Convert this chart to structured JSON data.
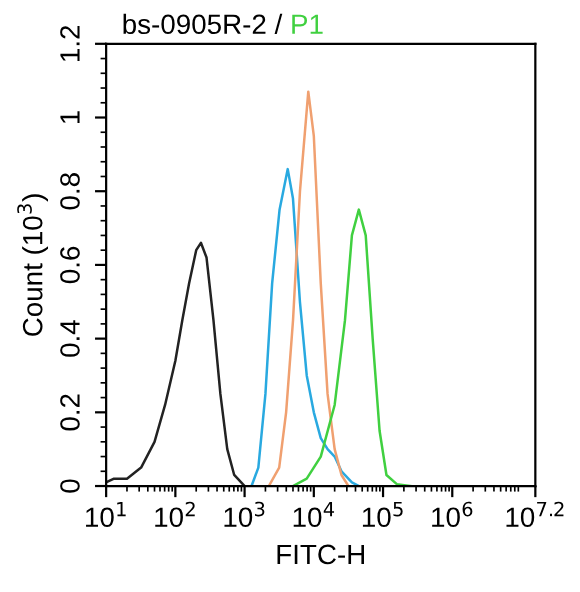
{
  "chart_data": {
    "type": "line",
    "title": "bs-0905R-2 /",
    "subtitle": "P1",
    "xlabel": "FITC-H",
    "ylabel": "Count (10$^{3}$)",
    "log": "x",
    "grid": false,
    "legend": false,
    "marker": "none",
    "line_style": "solid",
    "xlim": [
      10,
      15848932
    ],
    "xticks": [
      {
        "value": 10,
        "label": "10$^{1}$"
      },
      {
        "value": 100,
        "label": "10$^{2}$"
      },
      {
        "value": 1000,
        "label": "10$^{3}$"
      },
      {
        "value": 10000,
        "label": "10$^{4}$"
      },
      {
        "value": 100000,
        "label": "10$^{5}$"
      },
      {
        "value": 1000000,
        "label": "10$^{6}$"
      },
      {
        "value": 15848932,
        "label": "10$^{7.2}$"
      }
    ],
    "ylim": [
      0,
      1.2
    ],
    "yticks": [
      0,
      0.2,
      0.4,
      0.6,
      0.8,
      1,
      1.2
    ],
    "series": [
      {
        "color": "#222222",
        "x": [
          10,
          13,
          20,
          32,
          50,
          71,
          100,
          126,
          158,
          200,
          234,
          282,
          355,
          447,
          562,
          708,
          1000
        ],
        "values": [
          0.01,
          0.02,
          0.02,
          0.05,
          0.12,
          0.22,
          0.34,
          0.45,
          0.55,
          0.64,
          0.66,
          0.62,
          0.45,
          0.25,
          0.1,
          0.03,
          0
        ]
      },
      {
        "color": "#29a9e0",
        "x": [
          1260,
          1580,
          2000,
          2500,
          3200,
          4200,
          5000,
          6300,
          7900,
          10000,
          12600,
          15800,
          20000,
          25100,
          35500,
          44700
        ],
        "values": [
          0,
          0.05,
          0.25,
          0.55,
          0.75,
          0.86,
          0.78,
          0.5,
          0.3,
          0.2,
          0.13,
          0.1,
          0.08,
          0.04,
          0.01,
          0
        ]
      },
      {
        "color": "#f0a070",
        "x": [
          2240,
          3160,
          3980,
          5010,
          6310,
          8320,
          10000,
          12600,
          15800,
          20000,
          25100,
          31600
        ],
        "values": [
          0,
          0.05,
          0.2,
          0.45,
          0.8,
          1.07,
          0.95,
          0.55,
          0.25,
          0.1,
          0.03,
          0
        ]
      },
      {
        "color": "#40d040",
        "x": [
          5000,
          7900,
          12600,
          20000,
          28200,
          35500,
          44700,
          56200,
          70800,
          89100,
          112000,
          158000,
          251000
        ],
        "values": [
          0,
          0.02,
          0.08,
          0.22,
          0.45,
          0.68,
          0.75,
          0.68,
          0.4,
          0.15,
          0.03,
          0.005,
          0
        ]
      }
    ]
  }
}
